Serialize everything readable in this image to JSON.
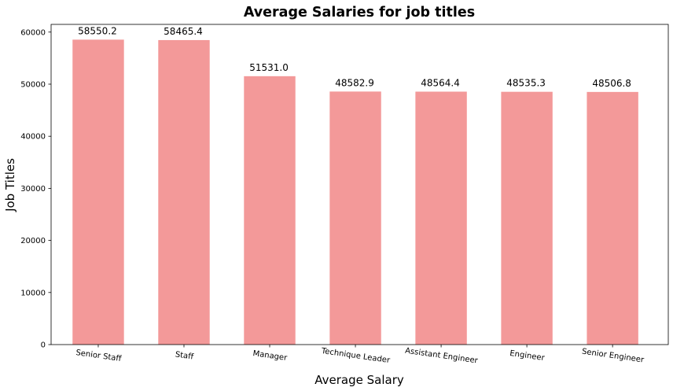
{
  "chart_data": {
    "type": "bar",
    "title": "Average Salaries for job titles",
    "xlabel": "Average Salary",
    "ylabel": "Job Titles",
    "categories": [
      "Senior Staff",
      "Staff",
      "Manager",
      "Technique Leader",
      "Assistant Engineer",
      "Engineer",
      "Senior Engineer"
    ],
    "values": [
      58550.2,
      58465.4,
      51531.0,
      48582.9,
      48564.4,
      48535.3,
      48506.8
    ],
    "value_labels": [
      "58550.2",
      "58465.4",
      "51531.0",
      "48582.9",
      "48564.4",
      "48535.3",
      "48506.8"
    ],
    "y_ticks": [
      0,
      10000,
      20000,
      30000,
      40000,
      50000,
      60000
    ],
    "ylim": [
      0,
      61477.7
    ],
    "grid": false,
    "bar_color": "#f08080",
    "bar_alpha": 0.8
  }
}
